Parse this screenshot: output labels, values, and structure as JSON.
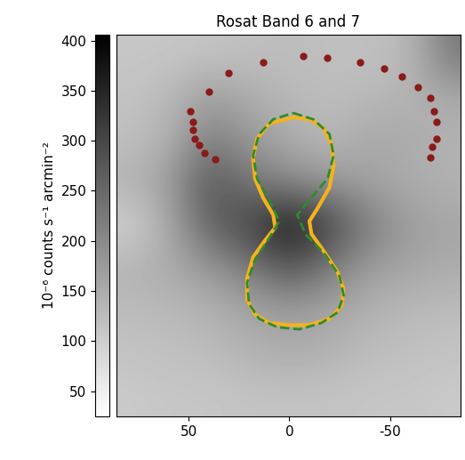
{
  "chart_data": {
    "type": "heatmap",
    "title": "Rosat Band 6 and 7",
    "xlim": [
      86,
      -85
    ],
    "ylim": [
      -90,
      90
    ],
    "xticks": [
      50,
      0,
      -50
    ],
    "tick_labels": "x",
    "cell_x": [
      80,
      60,
      40,
      20,
      0,
      -20,
      -40,
      -60,
      -80
    ],
    "cell_y": [
      80,
      60,
      40,
      20,
      0,
      -20,
      -40,
      -60,
      -80
    ],
    "cells": [
      [
        110,
        110,
        115,
        120,
        125,
        120,
        120,
        130,
        230
      ],
      [
        115,
        130,
        170,
        150,
        130,
        125,
        130,
        140,
        150
      ],
      [
        120,
        140,
        220,
        180,
        150,
        130,
        160,
        150,
        140
      ],
      [
        140,
        170,
        280,
        230,
        200,
        180,
        160,
        150,
        140
      ],
      [
        90,
        150,
        260,
        300,
        380,
        300,
        220,
        170,
        160
      ],
      [
        140,
        150,
        180,
        220,
        280,
        220,
        170,
        160,
        150
      ],
      [
        125,
        130,
        140,
        160,
        170,
        160,
        140,
        130,
        125
      ],
      [
        115,
        120,
        125,
        140,
        150,
        140,
        125,
        120,
        115
      ],
      [
        105,
        110,
        110,
        115,
        115,
        115,
        110,
        110,
        105
      ]
    ],
    "colorbar": {
      "label": "10⁻⁶ counts s⁻¹ arcmin⁻²",
      "range": [
        25,
        406
      ],
      "ticks": [
        50,
        100,
        150,
        200,
        250,
        300,
        350,
        400
      ]
    },
    "series": [
      {
        "type": "scatter",
        "color": "#8b1a1a",
        "marker": "o",
        "x": [
          37,
          42,
          45,
          47,
          48,
          48,
          49,
          40,
          30,
          13,
          -7,
          -19,
          -35,
          -47,
          -56,
          -64,
          -70,
          -72,
          -73,
          -73,
          -71,
          -70
        ],
        "y": [
          31,
          34,
          38,
          41,
          45,
          49,
          54,
          63,
          72,
          77,
          80,
          79,
          77,
          74,
          70,
          65,
          60,
          54,
          49,
          41,
          37,
          32
        ]
      },
      {
        "type": "line",
        "color": "#f5b21b",
        "line_style": "solid",
        "x": [
          -2,
          -10,
          -17,
          -21,
          -22,
          -20,
          -14,
          -10,
          -11,
          -17,
          -24,
          -27,
          -26,
          -20,
          -10,
          0,
          10,
          17,
          21,
          21,
          18,
          12,
          7,
          8,
          13,
          17,
          18,
          16,
          10,
          -2
        ],
        "y": [
          51,
          50,
          46,
          38,
          28,
          18,
          8,
          2,
          -4,
          -12,
          -22,
          -30,
          -38,
          -44,
          -47,
          -47,
          -46,
          -42,
          -35,
          -25,
          -15,
          -7,
          -1,
          5,
          13,
          22,
          32,
          41,
          48,
          51
        ]
      },
      {
        "type": "line",
        "color": "#2e8b2e",
        "line_style": "dashed",
        "x": [
          -2,
          -12,
          -20,
          -22,
          -19,
          -10,
          -4,
          -8,
          -18,
          -25,
          -27,
          -24,
          -16,
          -5,
          6,
          15,
          20,
          21,
          17,
          10,
          5,
          10,
          16,
          18,
          15,
          8,
          -2
        ],
        "y": [
          53,
          50,
          43,
          33,
          22,
          12,
          5,
          -4,
          -14,
          -24,
          -33,
          -41,
          -46,
          -49,
          -48,
          -44,
          -37,
          -27,
          -16,
          -6,
          2,
          12,
          22,
          33,
          43,
          50,
          53
        ]
      }
    ]
  }
}
